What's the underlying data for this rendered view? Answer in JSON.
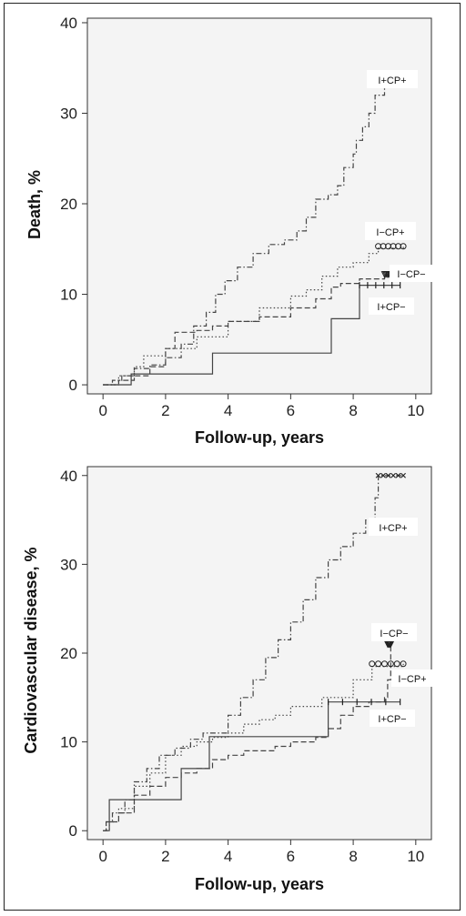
{
  "chart_data": [
    {
      "type": "line",
      "step": true,
      "title": "",
      "xlabel": "Follow-up, years",
      "ylabel": "Death, %",
      "xlim": [
        -0.5,
        10.5
      ],
      "ylim": [
        -1,
        40.5
      ],
      "xticks": [
        0,
        2,
        4,
        6,
        8,
        10
      ],
      "yticks": [
        0,
        10,
        20,
        30,
        40
      ],
      "grid": false,
      "series": [
        {
          "name": "I+CP+",
          "style": "dashdot",
          "marker": "x",
          "points": [
            [
              0,
              0
            ],
            [
              0.3,
              0.5
            ],
            [
              0.6,
              1
            ],
            [
              1,
              1.8
            ],
            [
              1.5,
              2.2
            ],
            [
              2,
              3
            ],
            [
              2.5,
              4.5
            ],
            [
              2.9,
              6.5
            ],
            [
              3.3,
              8
            ],
            [
              3.6,
              10
            ],
            [
              3.9,
              11.5
            ],
            [
              4.3,
              13
            ],
            [
              4.8,
              14.5
            ],
            [
              5.3,
              15.5
            ],
            [
              5.8,
              16
            ],
            [
              6.2,
              17
            ],
            [
              6.5,
              18.5
            ],
            [
              6.8,
              20.5
            ],
            [
              7.2,
              21
            ],
            [
              7.5,
              22
            ],
            [
              7.7,
              24
            ],
            [
              8,
              25.5
            ],
            [
              8.1,
              27
            ],
            [
              8.3,
              28.5
            ],
            [
              8.5,
              30
            ],
            [
              8.7,
              32
            ],
            [
              9,
              34
            ],
            [
              9.6,
              34.3
            ]
          ]
        },
        {
          "name": "I−CP+",
          "style": "dotted",
          "marker": "o",
          "points": [
            [
              0,
              0
            ],
            [
              0.5,
              1
            ],
            [
              1,
              2
            ],
            [
              1.3,
              3.2
            ],
            [
              2,
              4
            ],
            [
              3,
              5.3
            ],
            [
              4,
              7
            ],
            [
              5,
              8.5
            ],
            [
              6,
              9.8
            ],
            [
              6.5,
              10.5
            ],
            [
              7,
              12
            ],
            [
              7.5,
              13
            ],
            [
              8,
              13.5
            ],
            [
              8.5,
              14.5
            ],
            [
              8.8,
              15.1
            ],
            [
              9.6,
              15.3
            ]
          ]
        },
        {
          "name": "I−CP−",
          "style": "dashed",
          "marker": "triangle",
          "points": [
            [
              0,
              0
            ],
            [
              0.5,
              0.5
            ],
            [
              1,
              1
            ],
            [
              1.5,
              2
            ],
            [
              2,
              4
            ],
            [
              2.3,
              5.8
            ],
            [
              3,
              6
            ],
            [
              3.5,
              6.5
            ],
            [
              4,
              7
            ],
            [
              5,
              7.5
            ],
            [
              6,
              8.5
            ],
            [
              6.8,
              9.5
            ],
            [
              7.3,
              10.8
            ],
            [
              7.6,
              11.2
            ],
            [
              8.2,
              11.7
            ],
            [
              9,
              12
            ],
            [
              9.2,
              12.2
            ]
          ]
        },
        {
          "name": "I+CP−",
          "style": "solid",
          "marker": "plus",
          "points": [
            [
              0,
              0
            ],
            [
              0.9,
              0
            ],
            [
              0.9,
              1.2
            ],
            [
              3.5,
              1.2
            ],
            [
              3.5,
              3.5
            ],
            [
              7.3,
              3.5
            ],
            [
              7.3,
              7.3
            ],
            [
              8.2,
              7.3
            ],
            [
              8.2,
              11
            ],
            [
              9.5,
              11
            ]
          ]
        }
      ]
    },
    {
      "type": "line",
      "step": true,
      "title": "",
      "xlabel": "Follow-up, years",
      "ylabel": "Cardiovascular disease, %",
      "xlim": [
        -0.5,
        10.5
      ],
      "ylim": [
        -1,
        41
      ],
      "xticks": [
        0,
        2,
        4,
        6,
        8,
        10
      ],
      "yticks": [
        0,
        10,
        20,
        30,
        40
      ],
      "grid": false,
      "series": [
        {
          "name": "I+CP+",
          "style": "dashdot",
          "marker": "x",
          "points": [
            [
              0,
              0
            ],
            [
              0.1,
              1
            ],
            [
              0.3,
              2
            ],
            [
              0.7,
              3.5
            ],
            [
              1,
              5.5
            ],
            [
              1.4,
              7
            ],
            [
              1.8,
              8.5
            ],
            [
              2.3,
              9.3
            ],
            [
              2.8,
              10.3
            ],
            [
              3.2,
              11
            ],
            [
              3.8,
              11
            ],
            [
              4,
              13
            ],
            [
              4.4,
              15
            ],
            [
              4.8,
              17
            ],
            [
              5.2,
              19.5
            ],
            [
              5.6,
              21.5
            ],
            [
              6,
              23.5
            ],
            [
              6.4,
              26
            ],
            [
              6.8,
              28.5
            ],
            [
              7.2,
              30.5
            ],
            [
              7.6,
              32
            ],
            [
              8.0,
              33.5
            ],
            [
              8.4,
              35
            ],
            [
              8.7,
              37.5
            ],
            [
              8.8,
              40
            ],
            [
              9.6,
              40
            ]
          ]
        },
        {
          "name": "I−CP−",
          "style": "dashed",
          "marker": "triangle",
          "points": [
            [
              0,
              0
            ],
            [
              0.1,
              1
            ],
            [
              0.5,
              2
            ],
            [
              1,
              4
            ],
            [
              1.5,
              5
            ],
            [
              2,
              6
            ],
            [
              2.5,
              6.5
            ],
            [
              3,
              7
            ],
            [
              3.5,
              8
            ],
            [
              4,
              8.5
            ],
            [
              4.5,
              9
            ],
            [
              5,
              9
            ],
            [
              5.5,
              9.5
            ],
            [
              6,
              10
            ],
            [
              6.8,
              10.5
            ],
            [
              7.2,
              11.5
            ],
            [
              7.6,
              13
            ],
            [
              8,
              14
            ],
            [
              8.5,
              14.5
            ],
            [
              9,
              15
            ],
            [
              9.1,
              17
            ],
            [
              9.2,
              21
            ]
          ]
        },
        {
          "name": "I−CP+",
          "style": "dotted",
          "marker": "o",
          "points": [
            [
              0,
              0
            ],
            [
              0.2,
              1
            ],
            [
              0.5,
              2.5
            ],
            [
              1,
              5
            ],
            [
              1.5,
              6.5
            ],
            [
              2,
              8.5
            ],
            [
              2.5,
              9.5
            ],
            [
              3,
              10
            ],
            [
              3.5,
              10.5
            ],
            [
              4,
              11
            ],
            [
              4.5,
              12
            ],
            [
              5,
              12.5
            ],
            [
              5.5,
              13
            ],
            [
              6,
              14
            ],
            [
              7,
              15
            ],
            [
              8,
              17
            ],
            [
              8.6,
              18.5
            ],
            [
              9.6,
              18.8
            ]
          ]
        },
        {
          "name": "I+CP−",
          "style": "solid",
          "marker": "plus",
          "points": [
            [
              0,
              0
            ],
            [
              0.2,
              0
            ],
            [
              0.2,
              3.5
            ],
            [
              2.5,
              3.5
            ],
            [
              2.5,
              7
            ],
            [
              3.4,
              7
            ],
            [
              3.4,
              10.6
            ],
            [
              7.2,
              10.6
            ],
            [
              7.2,
              14.5
            ],
            [
              9.5,
              14.5
            ]
          ]
        }
      ]
    }
  ],
  "labels": {
    "p1": {
      "a": "I+CP+",
      "b": "I−CP+",
      "c": "I−CP−",
      "d": "I+CP−"
    },
    "p2": {
      "a": "I+CP+",
      "b": "I−CP−",
      "c": "I−CP+",
      "d": "I+CP−"
    }
  }
}
